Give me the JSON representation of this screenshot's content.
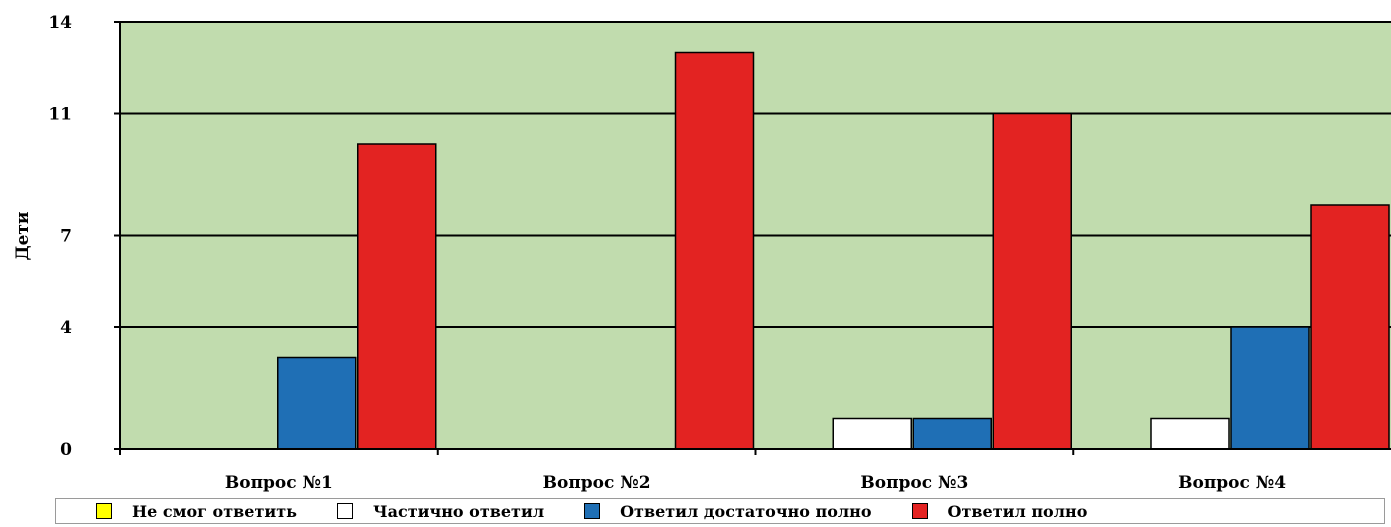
{
  "chart_data": {
    "type": "bar",
    "title": "",
    "xlabel": "",
    "ylabel": "Дети",
    "ylim": [
      0,
      14
    ],
    "yticks": [
      0,
      4,
      7,
      11,
      14
    ],
    "grid": true,
    "legend_position": "bottom",
    "plot_background": "#c1dcae",
    "categories": [
      "Вопрос №1",
      "Вопрос №2",
      "Вопрос №3",
      "Вопрос №4"
    ],
    "series": [
      {
        "name": "Не смог ответить",
        "color": "#ffff00",
        "values": [
          0,
          0,
          0,
          0
        ]
      },
      {
        "name": "Частично ответил",
        "color": "#ffffff",
        "values": [
          0,
          0,
          1,
          1
        ]
      },
      {
        "name": "Ответил достаточно полно",
        "color": "#1f6fb5",
        "values": [
          3,
          0,
          1,
          4
        ]
      },
      {
        "name": "Ответил полно",
        "color": "#e32322",
        "values": [
          10,
          13,
          11,
          8
        ]
      }
    ]
  }
}
